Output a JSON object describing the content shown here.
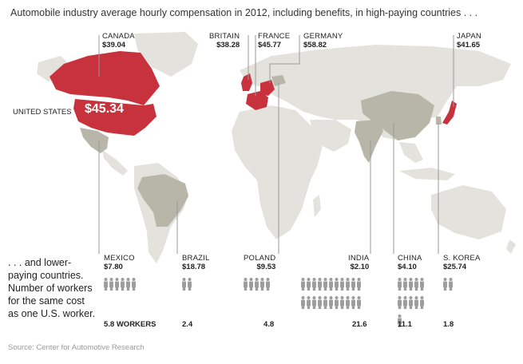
{
  "title": "Automobile industry average hourly compensation in 2012, including benefits, in high-paying countries . . .",
  "high_paying": [
    {
      "name": "CANADA",
      "value": "$39.04"
    },
    {
      "name": "BRITAIN",
      "value": "$38.28"
    },
    {
      "name": "FRANCE",
      "value": "$45.77"
    },
    {
      "name": "GERMANY",
      "value": "$58.82"
    },
    {
      "name": "JAPAN",
      "value": "$41.65"
    }
  ],
  "united_states": {
    "name": "UNITED STATES",
    "value": "$45.34"
  },
  "lower_note": ". . . and lower-paying countries. Number of workers for the same cost as one U.S. worker.",
  "lower_paying": [
    {
      "name": "MEXICO",
      "value": "$7.80",
      "workers": 5.8,
      "workers_label": "5.8 WORKERS"
    },
    {
      "name": "BRAZIL",
      "value": "$18.78",
      "workers": 2.4,
      "workers_label": "2.4"
    },
    {
      "name": "POLAND",
      "value": "$9.53",
      "workers": 4.8,
      "workers_label": "4.8"
    },
    {
      "name": "INDIA",
      "value": "$2.10",
      "workers": 21.6,
      "workers_label": "21.6"
    },
    {
      "name": "CHINA",
      "value": "$4.10",
      "workers": 11.1,
      "workers_label": "11.1"
    },
    {
      "name": "S. KOREA",
      "value": "$25.74",
      "workers": 1.8,
      "workers_label": "1.8"
    }
  ],
  "source": "Source: Center for Automotive Research",
  "colors": {
    "high_paying": "#c8323c",
    "lower_paying": "#b7b6a9",
    "other_land": "#e3e2dc",
    "leader_line": "#9a9a9a",
    "worker_icon": "#9d9d9d"
  }
}
